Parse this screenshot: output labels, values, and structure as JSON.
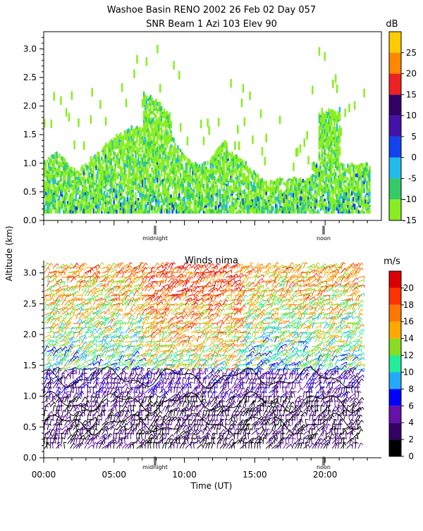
{
  "title": {
    "line1": "Washoe Basin RENO 2002  26 Feb 02 Day 057",
    "line2": "SNR Beam 1 Azi 103 Elev 90"
  },
  "shared": {
    "ylabel": "Altitude (km)",
    "xlabel": "Time (UT)",
    "marker_midnight": "midnight",
    "marker_noon": "noon",
    "x_ticks": [
      "00:00",
      "05:00",
      "10:00",
      "15:00",
      "20:00"
    ]
  },
  "colors": {
    "snr_palette": [
      "#88ee22",
      "#33cc66",
      "#22bbee",
      "#1144ee",
      "#4411aa",
      "#330066",
      "#ee2222",
      "#ff8800",
      "#ffcc00"
    ],
    "wind_palette": [
      "#000000",
      "#330066",
      "#6611aa",
      "#0000ff",
      "#22aaff",
      "#22ee99",
      "#88dd22",
      "#ffaa00",
      "#ff7700",
      "#ff3300",
      "#dd0000"
    ]
  },
  "chart_data": [
    {
      "type": "heatmap",
      "name": "snr",
      "title": "SNR Beam 1 Azi 103 Elev 90",
      "ylabel": "Altitude (km)",
      "ylim": [
        0,
        3.3
      ],
      "y_ticks": [
        "0.0",
        "0.5",
        "1.0",
        "1.5",
        "2.0",
        "2.5",
        "3.0"
      ],
      "xlim_hours": [
        0,
        24
      ],
      "colorbar": {
        "unit": "dB",
        "ticks": [
          "-15",
          "-10",
          "-5",
          "0",
          "5",
          "10",
          "15",
          "20",
          "25"
        ],
        "range": [
          -15,
          30
        ]
      }
    },
    {
      "type": "scatter",
      "name": "winds",
      "title": "Winds nima",
      "ylabel": "Altitude (km)",
      "xlabel": "Time (UT)",
      "ylim": [
        0,
        3.2
      ],
      "y_ticks": [
        "0.0",
        "0.5",
        "1.0",
        "1.5",
        "2.0",
        "2.5",
        "3.0"
      ],
      "x_ticks": [
        "00:00",
        "05:00",
        "10:00",
        "15:00",
        "20:00"
      ],
      "xlim_hours": [
        0,
        24
      ],
      "colorbar": {
        "unit": "m/s",
        "ticks": [
          "0",
          "2",
          "4",
          "6",
          "8",
          "10",
          "12",
          "14",
          "16",
          "18",
          "20"
        ],
        "range": [
          0,
          22
        ]
      }
    }
  ]
}
